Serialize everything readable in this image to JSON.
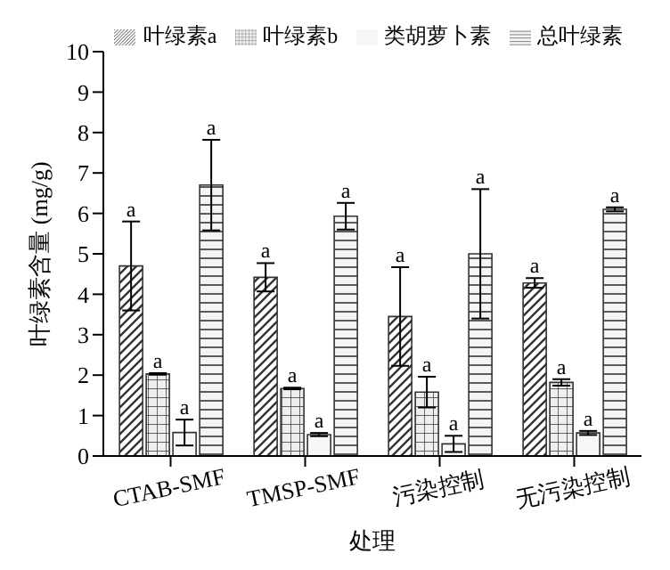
{
  "chart_data": {
    "type": "bar",
    "xlabel": "处理",
    "ylabel": "叶绿素含量 (mg/g)",
    "categories": [
      "CTAB-SMF",
      "TMSP-SMF",
      "污染控制",
      "无污染控制"
    ],
    "series": [
      {
        "name": "叶绿素a",
        "color": "#333333",
        "values": [
          4.7,
          4.42,
          3.45,
          4.28
        ],
        "errors": [
          1.1,
          0.35,
          1.22,
          0.12
        ],
        "value_labels": [
          "a",
          "a",
          "a",
          "a"
        ]
      },
      {
        "name": "叶绿素b",
        "color": "#333333",
        "values": [
          2.03,
          1.67,
          1.58,
          1.82
        ],
        "errors": [
          0.02,
          0.02,
          0.38,
          0.08
        ],
        "value_labels": [
          "a",
          "a",
          "a",
          "a"
        ]
      },
      {
        "name": "类胡萝卜素",
        "color": "#333333",
        "values": [
          0.58,
          0.53,
          0.3,
          0.57
        ],
        "errors": [
          0.32,
          0.04,
          0.2,
          0.05
        ],
        "value_labels": [
          "a",
          "a",
          "a",
          "a"
        ]
      },
      {
        "name": "总叶绿素",
        "color": "#333333",
        "values": [
          6.7,
          5.93,
          5.0,
          6.1
        ],
        "errors": [
          1.12,
          0.33,
          1.6,
          0.05
        ],
        "value_labels": [
          "a",
          "a",
          "a",
          "a"
        ]
      }
    ],
    "ylim": [
      0,
      10
    ],
    "yticks": [
      0,
      1,
      2,
      3,
      4,
      5,
      6,
      7,
      8,
      9,
      10
    ],
    "legend": "top",
    "grid": false
  }
}
